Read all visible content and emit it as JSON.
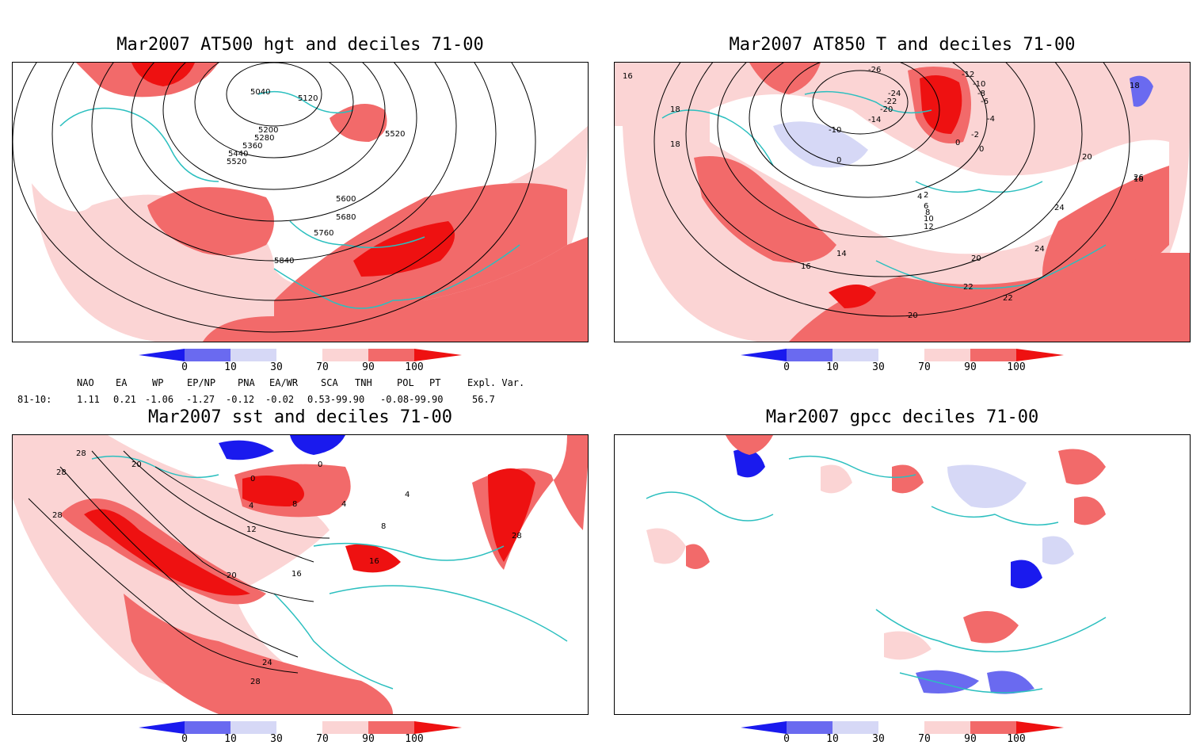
{
  "colors": {
    "dark_blue": "#1a1aee",
    "mid_blue": "#6a6af0",
    "light_blue": "#d6d8f6",
    "light_red": "#fbd4d4",
    "mid_red": "#f26a6a",
    "dark_red": "#ee1111",
    "coast": "#2bbfbf",
    "contour": "#000000"
  },
  "colorbar": {
    "ticks": [
      "0",
      "10",
      "30",
      "70",
      "90",
      "100"
    ]
  },
  "panels": [
    {
      "title": "Mar2007 AT500 hgt and deciles 71-00",
      "contour_labels": [
        "5040",
        "5120",
        "5200",
        "5280",
        "5360",
        "5440",
        "5520",
        "5520",
        "5600",
        "5680",
        "5760",
        "5840"
      ]
    },
    {
      "title": "Mar2007 AT850 T and deciles 71-00",
      "contour_labels": [
        "16",
        "18",
        "18",
        "-26",
        "-24",
        "-22",
        "-20",
        "-14",
        "-12",
        "-10",
        "-8",
        "-6",
        "-4",
        "-2",
        "0",
        "0",
        "0",
        "-10",
        "2",
        "4",
        "6",
        "8",
        "10",
        "12",
        "14",
        "16",
        "18",
        "20",
        "20",
        "22",
        "22",
        "24",
        "24",
        "26",
        "18",
        "20"
      ]
    },
    {
      "title": "Mar2007 sst and deciles 71-00",
      "contour_labels": [
        "28",
        "28",
        "28",
        "20",
        "0",
        "0",
        "4",
        "8",
        "4",
        "12",
        "16",
        "16",
        "8",
        "4",
        "20",
        "24",
        "28",
        "28"
      ]
    },
    {
      "title": "Mar2007 gpcc deciles 71-00",
      "contour_labels": []
    }
  ],
  "teleconnections": {
    "headers": [
      "NAO",
      "EA",
      "WP",
      "EP/NP",
      "PNA",
      "EA/WR",
      "SCA",
      "TNH",
      "POL",
      "PT",
      "Expl. Var."
    ],
    "row_label": "81-10:",
    "values": [
      "1.11",
      "0.21",
      "-1.06",
      "-1.27",
      "-0.12",
      "-0.02",
      "0.53-99.90",
      "-0.08-99.90",
      "56.7"
    ]
  }
}
